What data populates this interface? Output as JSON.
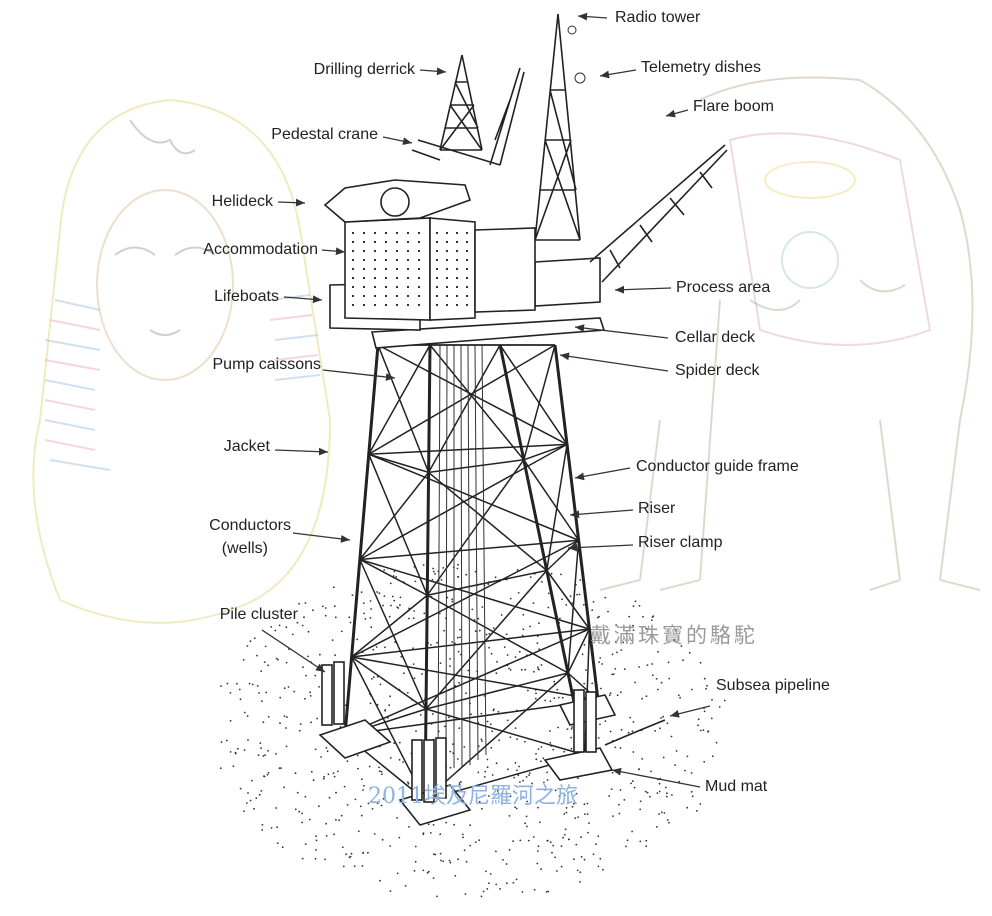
{
  "labels": [
    "Radio tower",
    "Drilling derrick",
    "Telemetry dishes",
    "Flare boom",
    "Pedestal crane",
    "Helideck",
    "Accommodation",
    "Lifeboats",
    "Process area",
    "Cellar deck",
    "Pump caissons",
    "Spider deck",
    "Jacket",
    "Conductor guide frame",
    "Riser",
    "Conductors",
    "(wells)",
    "Riser clamp",
    "Pile cluster",
    "Subsea pipeline",
    "Mud mat"
  ],
  "watermarks": [
    "戴滿珠寶的駱駝",
    "2011埃及尼羅河之旅"
  ]
}
